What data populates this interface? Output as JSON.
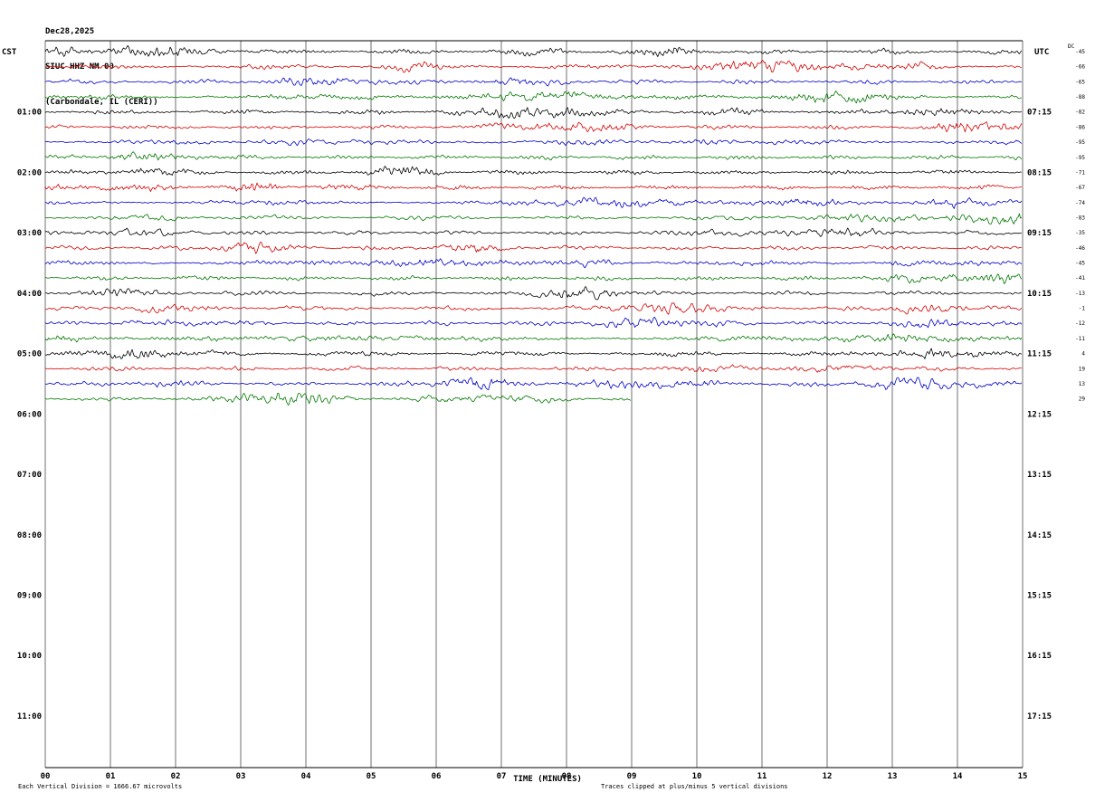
{
  "title": {
    "date": "Dec28,2025",
    "station": "SIUC HHZ NM 00",
    "location": "(Carbondale, IL (CERI))"
  },
  "axes": {
    "left_header": "CST",
    "right_header": "UTC",
    "dc_header": "DC",
    "left_times": [
      "01:00",
      "02:00",
      "03:00",
      "04:00",
      "05:00",
      "06:00",
      "07:00",
      "08:00",
      "09:00",
      "10:00",
      "11:00"
    ],
    "right_times": [
      "07:15",
      "08:15",
      "09:15",
      "10:15",
      "11:15",
      "12:15",
      "13:15",
      "14:15",
      "15:15",
      "16:15",
      "17:15"
    ],
    "x_ticks": [
      "00",
      "01",
      "02",
      "03",
      "04",
      "05",
      "06",
      "07",
      "08",
      "09",
      "10",
      "11",
      "12",
      "13",
      "14",
      "15"
    ],
    "x_title": "TIME (MINUTES)"
  },
  "footer": {
    "left": "Each Vertical Division = 1666.67 microvolts",
    "right": "Traces clipped at plus/minus 5 vertical divisions"
  },
  "chart_data": {
    "type": "line",
    "subtype": "helicorder-seismogram",
    "title": "SIUC HHZ NM 00 (Carbondale, IL (CERI)) Dec28,2025",
    "xlabel": "TIME (MINUTES)",
    "x_range_minutes": [
      0,
      15
    ],
    "row_duration_minutes": 15,
    "grid": "vertical lines every 1 minute, top and bottom frame lines",
    "legend_position": "none",
    "trace_color_cycle": {
      "black": "#000000",
      "red": "#d40000",
      "blue": "#0000c8",
      "green": "#007800"
    },
    "amplitude_note": "continuous microseismic background noise, ~1 vertical division peak amplitude, clipped at plus/minus 5 divisions",
    "rows": [
      {
        "index": 0,
        "cst_start": "00:00",
        "color": "black",
        "dc_offset": -45,
        "end_minute": 15
      },
      {
        "index": 1,
        "cst_start": "00:15",
        "color": "red",
        "dc_offset": -66,
        "end_minute": 15
      },
      {
        "index": 2,
        "cst_start": "00:30",
        "color": "blue",
        "dc_offset": -65,
        "end_minute": 15
      },
      {
        "index": 3,
        "cst_start": "00:45",
        "color": "green",
        "dc_offset": -88,
        "end_minute": 15
      },
      {
        "index": 4,
        "cst_start": "01:00",
        "color": "black",
        "dc_offset": -82,
        "end_minute": 15
      },
      {
        "index": 5,
        "cst_start": "01:15",
        "color": "red",
        "dc_offset": -86,
        "end_minute": 15
      },
      {
        "index": 6,
        "cst_start": "01:30",
        "color": "blue",
        "dc_offset": -95,
        "end_minute": 15
      },
      {
        "index": 7,
        "cst_start": "01:45",
        "color": "green",
        "dc_offset": -95,
        "end_minute": 15
      },
      {
        "index": 8,
        "cst_start": "02:00",
        "color": "black",
        "dc_offset": -71,
        "end_minute": 15
      },
      {
        "index": 9,
        "cst_start": "02:15",
        "color": "red",
        "dc_offset": -67,
        "end_minute": 15
      },
      {
        "index": 10,
        "cst_start": "02:30",
        "color": "blue",
        "dc_offset": -74,
        "end_minute": 15
      },
      {
        "index": 11,
        "cst_start": "02:45",
        "color": "green",
        "dc_offset": -83,
        "end_minute": 15
      },
      {
        "index": 12,
        "cst_start": "03:00",
        "color": "black",
        "dc_offset": -35,
        "end_minute": 15
      },
      {
        "index": 13,
        "cst_start": "03:15",
        "color": "red",
        "dc_offset": -46,
        "end_minute": 15
      },
      {
        "index": 14,
        "cst_start": "03:30",
        "color": "blue",
        "dc_offset": -45,
        "end_minute": 15
      },
      {
        "index": 15,
        "cst_start": "03:45",
        "color": "green",
        "dc_offset": -41,
        "end_minute": 15
      },
      {
        "index": 16,
        "cst_start": "04:00",
        "color": "black",
        "dc_offset": -13,
        "end_minute": 15
      },
      {
        "index": 17,
        "cst_start": "04:15",
        "color": "red",
        "dc_offset": -1,
        "end_minute": 15
      },
      {
        "index": 18,
        "cst_start": "04:30",
        "color": "blue",
        "dc_offset": -12,
        "end_minute": 15
      },
      {
        "index": 19,
        "cst_start": "04:45",
        "color": "green",
        "dc_offset": -11,
        "end_minute": 15
      },
      {
        "index": 20,
        "cst_start": "05:00",
        "color": "black",
        "dc_offset": 4,
        "end_minute": 15
      },
      {
        "index": 21,
        "cst_start": "05:15",
        "color": "red",
        "dc_offset": 19,
        "end_minute": 15
      },
      {
        "index": 22,
        "cst_start": "05:30",
        "color": "blue",
        "dc_offset": 13,
        "end_minute": 15
      },
      {
        "index": 23,
        "cst_start": "05:45",
        "color": "green",
        "dc_offset": 29,
        "end_minute": 9
      }
    ],
    "empty_region": "rows after 05:45 CST (12:15 UTC) contain no trace data; grid continues to 11:00 CST / 17:15 UTC"
  }
}
